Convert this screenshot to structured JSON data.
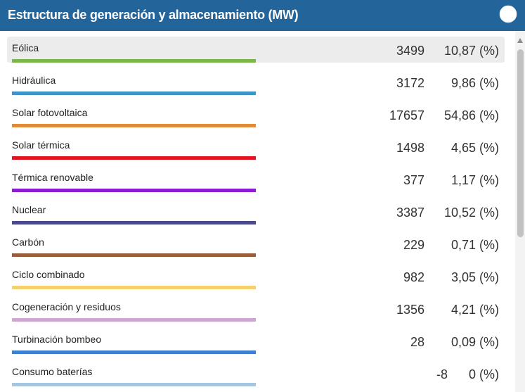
{
  "header": {
    "title": "Estructura de generación y almacenamiento (MW)",
    "icon": "pie-chart-icon"
  },
  "rows": [
    {
      "label": "Eólica",
      "value": "3499",
      "percent": "10,87 (%)",
      "color": "#7ab648",
      "active": true
    },
    {
      "label": "Hidráulica",
      "value": "3172",
      "percent": "9,86 (%)",
      "color": "#3f95c8"
    },
    {
      "label": "Solar fotovoltaica",
      "value": "17657",
      "percent": "54,86 (%)",
      "color": "#e28b36"
    },
    {
      "label": "Solar térmica",
      "value": "1498",
      "percent": "4,65 (%)",
      "color": "#e3141e"
    },
    {
      "label": "Térmica renovable",
      "value": "377",
      "percent": "1,17 (%)",
      "color": "#8d1bd6"
    },
    {
      "label": "Nuclear",
      "value": "3387",
      "percent": "10,52 (%)",
      "color": "#4b4a8c"
    },
    {
      "label": "Carbón",
      "value": "229",
      "percent": "0,71 (%)",
      "color": "#9a5d3b"
    },
    {
      "label": "Ciclo combinado",
      "value": "982",
      "percent": "3,05 (%)",
      "color": "#f7d06e"
    },
    {
      "label": "Cogeneración y residuos",
      "value": "1356",
      "percent": "4,21 (%)",
      "color": "#cfa6d2"
    },
    {
      "label": "Turbinación bombeo",
      "value": "28",
      "percent": "0,09 (%)",
      "color": "#3d7fd1"
    },
    {
      "label": "Consumo baterías",
      "value": "-8",
      "percent": "0 (%)",
      "color": "#a6c6e0"
    }
  ]
}
